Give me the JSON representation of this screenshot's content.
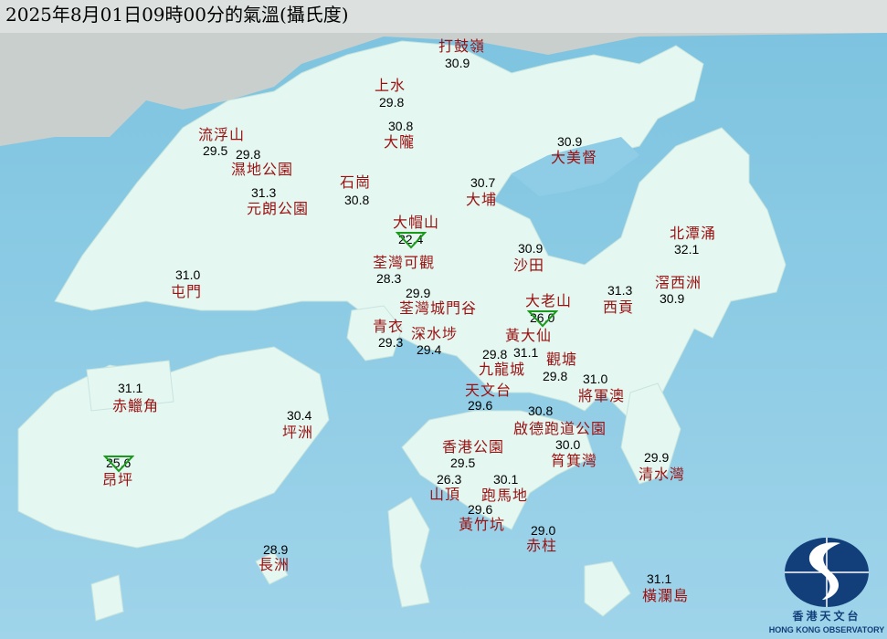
{
  "title": "2025年8月01日09時00分的氣溫(攝氏度)",
  "colors": {
    "sea": "#8fcde6",
    "land": "#e4f7f1",
    "station_name": "#9a1010",
    "temperature": "#000000",
    "low_marker": "#1a9a1a",
    "logo": "#123f7a"
  },
  "low_marker_icon": "green-inverted-triangle",
  "stations": [
    {
      "name": "打鼓嶺",
      "temp": "30.9"
    },
    {
      "name": "上水",
      "temp": "29.8"
    },
    {
      "name": "大隴",
      "temp": "30.8"
    },
    {
      "name": "流浮山",
      "temp": "29.5"
    },
    {
      "name": "濕地公園",
      "temp": "29.8"
    },
    {
      "name": "大美督",
      "temp": "30.9"
    },
    {
      "name": "元朗公園",
      "temp": "31.3"
    },
    {
      "name": "石崗",
      "temp": "30.8"
    },
    {
      "name": "大埔",
      "temp": "30.7"
    },
    {
      "name": "大帽山",
      "temp": "22.4",
      "lowest": true
    },
    {
      "name": "北潭涌",
      "temp": "32.1"
    },
    {
      "name": "沙田",
      "temp": "30.9"
    },
    {
      "name": "荃灣可觀",
      "temp": "28.3"
    },
    {
      "name": "屯門",
      "temp": "31.0"
    },
    {
      "name": "西貢",
      "temp": "31.3"
    },
    {
      "name": "滘西洲",
      "temp": "30.9"
    },
    {
      "name": "荃灣城門谷",
      "temp": "29.9"
    },
    {
      "name": "大老山",
      "temp": "26.0",
      "lowest": true
    },
    {
      "name": "青衣",
      "temp": "29.3"
    },
    {
      "name": "深水埗",
      "temp": "29.4"
    },
    {
      "name": "黃大仙",
      "temp": "31.1"
    },
    {
      "name": "九龍城",
      "temp": "29.8"
    },
    {
      "name": "觀塘",
      "temp": "29.8"
    },
    {
      "name": "天文台",
      "temp": "29.6"
    },
    {
      "name": "將軍澳",
      "temp": "31.0"
    },
    {
      "name": "啟德跑道公園",
      "temp": "30.8"
    },
    {
      "name": "赤鱲角",
      "temp": "31.1"
    },
    {
      "name": "坪洲",
      "temp": "30.4"
    },
    {
      "name": "香港公園",
      "temp": "29.5"
    },
    {
      "name": "筲箕灣",
      "temp": "30.0"
    },
    {
      "name": "跑馬地",
      "temp": "30.1"
    },
    {
      "name": "山頂",
      "temp": "26.3"
    },
    {
      "name": "昂坪",
      "temp": "25.6",
      "lowest": true
    },
    {
      "name": "清水灣",
      "temp": "29.9"
    },
    {
      "name": "黃竹坑",
      "temp": "29.6"
    },
    {
      "name": "赤柱",
      "temp": "29.0"
    },
    {
      "name": "長洲",
      "temp": "28.9"
    },
    {
      "name": "橫瀾島",
      "temp": "31.1"
    }
  ],
  "logo": {
    "chinese": "香港天文台",
    "english": "HONG KONG OBSERVATORY"
  }
}
